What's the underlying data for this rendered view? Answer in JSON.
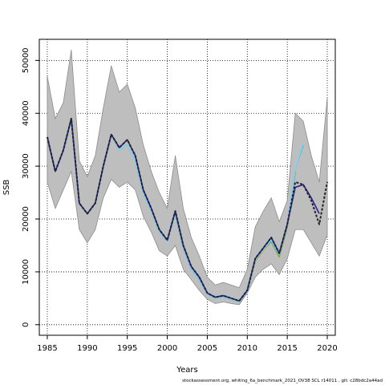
{
  "chart_data": {
    "type": "line",
    "xlabel": "Years",
    "ylabel": "SSB",
    "xlim": [
      1984,
      2021
    ],
    "ylim": [
      -2000,
      54000
    ],
    "xticks": [
      1985,
      1990,
      1995,
      2000,
      2005,
      2010,
      2015,
      2020
    ],
    "yticks": [
      0,
      10000,
      20000,
      30000,
      40000,
      50000
    ],
    "grid": true,
    "confidence_band": {
      "x": [
        1985,
        1986,
        1987,
        1988,
        1989,
        1990,
        1991,
        1992,
        1993,
        1994,
        1995,
        1996,
        1997,
        1998,
        1999,
        2000,
        2001,
        2002,
        2003,
        2004,
        2005,
        2006,
        2007,
        2008,
        2009,
        2010,
        2011,
        2012,
        2013,
        2014,
        2015,
        2016,
        2017,
        2018,
        2019,
        2020
      ],
      "upper": [
        47000,
        39000,
        42000,
        52000,
        31000,
        28000,
        32000,
        41000,
        49000,
        44000,
        45500,
        41000,
        34000,
        29000,
        25000,
        22000,
        32000,
        22000,
        16500,
        13000,
        9000,
        7500,
        8000,
        7500,
        7000,
        10500,
        18500,
        21500,
        24000,
        19500,
        23500,
        40000,
        38500,
        32000,
        27000,
        43000
      ],
      "lower": [
        27000,
        22000,
        25500,
        29000,
        18000,
        15500,
        18000,
        24000,
        27500,
        26000,
        27000,
        25500,
        20500,
        17500,
        14000,
        13000,
        15000,
        10500,
        8500,
        6500,
        4800,
        4000,
        4300,
        4000,
        3800,
        6000,
        9000,
        10500,
        11500,
        9500,
        12500,
        18000,
        18000,
        15500,
        13000,
        17000
      ]
    },
    "series": [
      {
        "values": [
          35500,
          29000,
          33000,
          39000,
          23000,
          21000,
          23000,
          30000,
          36000,
          33500,
          35000,
          32000,
          25500,
          22000,
          18000,
          16000,
          21500,
          15000,
          11000,
          9000,
          6000,
          5200,
          5500,
          5000,
          4500,
          6500,
          12500,
          14500,
          16500,
          13500,
          19000,
          27000,
          26500,
          23500,
          19000,
          27000
        ]
      },
      {
        "values": [
          35500,
          29000,
          33000,
          39000,
          23000,
          21000,
          23000,
          30000,
          36000,
          33500,
          35000,
          32000,
          25500,
          22000,
          18000,
          16000,
          21500,
          15000,
          11000,
          9000,
          6000,
          5200,
          5500,
          5000,
          4500,
          6500,
          12500,
          14500,
          16500,
          13500,
          19000,
          26000,
          26500,
          24000,
          21000
        ]
      },
      {
        "values": [
          35500,
          29000,
          33000,
          39000,
          23000,
          21000,
          23000,
          30000,
          36000,
          33000,
          34000,
          31000,
          25000,
          21500,
          17500,
          15800,
          21000,
          14500,
          10500,
          8500,
          5800,
          5000,
          5300,
          4800,
          4400,
          6300,
          12200,
          14200,
          16000,
          13200,
          18800,
          29500,
          34500
        ]
      },
      {
        "values": [
          35500,
          29000,
          33000,
          39000,
          23000,
          21000,
          23000,
          30000,
          36000,
          33000,
          34000,
          31000,
          25000,
          21500,
          17500,
          15800,
          21000,
          14500,
          10500,
          8500,
          5800,
          5000,
          5300,
          4800,
          4400,
          6300,
          12200,
          14200,
          16000,
          13200,
          18800,
          29500,
          34000
        ]
      },
      {
        "values": [
          35500,
          29000,
          33000,
          39000,
          23000,
          21000,
          23000,
          30000,
          36000,
          33000,
          34000,
          31000,
          25000,
          21500,
          17500,
          15800,
          21000,
          14500,
          10500,
          8500,
          5800,
          5000,
          5300,
          4800,
          4400,
          6300,
          12200,
          14200,
          15800,
          13000,
          18600,
          29000
        ]
      },
      {
        "values": [
          35500,
          29000,
          33000,
          39000,
          23000,
          21000,
          23000,
          30000,
          36000,
          33000,
          34000,
          31000,
          25000,
          21500,
          17500,
          15800,
          21000,
          14500,
          10500,
          8500,
          5800,
          5000,
          5300,
          4800,
          4400,
          6300,
          12000,
          14000,
          15800,
          12800,
          18500
        ]
      }
    ],
    "colors": {
      "band": "#bebebe",
      "series": [
        "#222222",
        "#22229a",
        "#87cefa",
        "#40c0b0",
        "#3aa33a",
        "#d4a017"
      ]
    }
  },
  "footer": {
    "text": "stockassessment.org,  whiting_6a_benchmark_2021_OV38   SCL  r14011  ,  git:  c28bdc2a44ad"
  }
}
